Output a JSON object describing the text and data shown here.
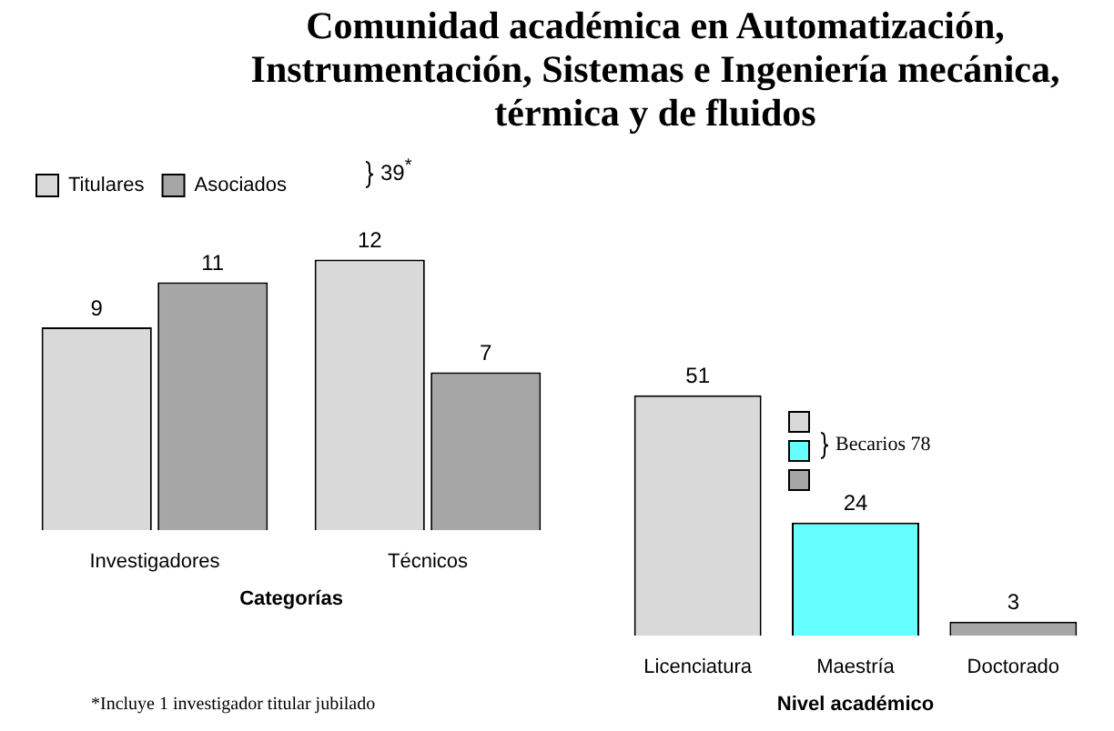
{
  "chart_data": [
    {
      "type": "bar",
      "title": "Comunidad académica en Automatización, Instrumentación, Sistemas e Ingeniería mecánica, térmica y de fluidos",
      "xlabel": "Categorías",
      "categories": [
        "Investigadores",
        "Técnicos"
      ],
      "series": [
        {
          "name": "Titulares",
          "color": "#d9d9d9",
          "values": [
            9,
            12
          ]
        },
        {
          "name": "Asociados",
          "color": "#a6a6a6",
          "values": [
            11,
            7
          ]
        }
      ],
      "data_labels": true,
      "legend": "top left",
      "grid": false,
      "tick_labels": "x",
      "annotations": [
        "39$^{*}$",
        "*Incluye 1 investigador titular jubilado"
      ]
    },
    {
      "type": "bar",
      "xlabel": "Nivel académico",
      "categories": [
        "Licenciatura",
        "Maestría",
        "Doctorado"
      ],
      "values": [
        51,
        24,
        3
      ],
      "colors": [
        "#d9d9d9",
        "#66ffff",
        "#a6a6a6"
      ],
      "data_labels": true,
      "legend": false,
      "grid": false,
      "tick_labels": "x",
      "annotations": [
        "Becarios 78"
      ]
    }
  ]
}
